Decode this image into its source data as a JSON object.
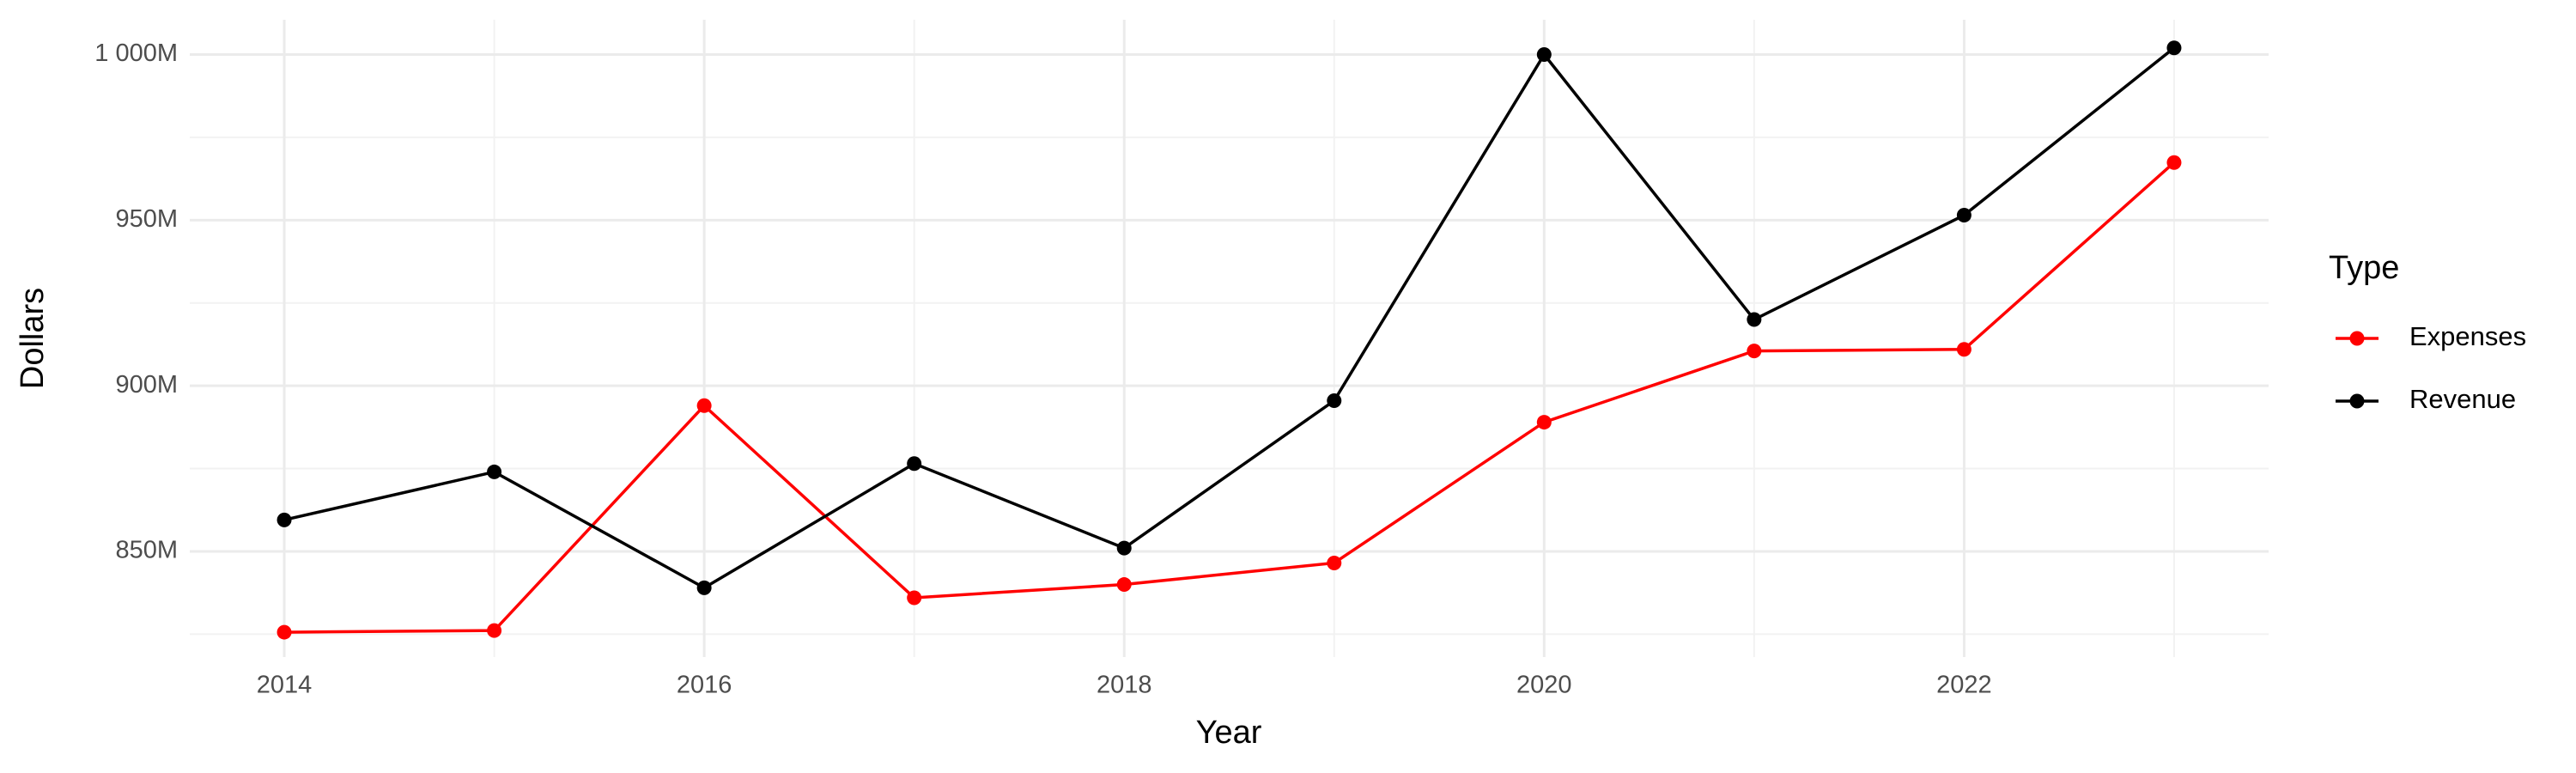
{
  "chart_data": {
    "type": "line",
    "x_label": "Year",
    "y_label": "Dollars",
    "x": [
      2014,
      2015,
      2016,
      2017,
      2018,
      2019,
      2020,
      2021,
      2022,
      2023
    ],
    "series": [
      {
        "name": "Expenses",
        "color": "#ff0000",
        "values": [
          825.6,
          826.1,
          894.0,
          836.0,
          840.0,
          846.5,
          889.0,
          910.5,
          911.0,
          967.4
        ]
      },
      {
        "name": "Revenue",
        "color": "#000000",
        "values": [
          859.5,
          874.0,
          839.0,
          876.5,
          851.0,
          895.5,
          1000.0,
          920.0,
          951.5,
          1002.0
        ]
      }
    ],
    "xlim": [
      2013.55,
      2023.45
    ],
    "xticks": [
      2014,
      2016,
      2018,
      2020,
      2022
    ],
    "ylim": [
      818.1,
      1010.5
    ],
    "yticks": [
      {
        "value": 850,
        "label": "850M"
      },
      {
        "value": 900,
        "label": "900M"
      },
      {
        "value": 950,
        "label": "950M"
      },
      {
        "value": 1000,
        "label": "1 000M"
      }
    ],
    "grid": true,
    "legend_title": "Type",
    "legend_position": "right"
  }
}
